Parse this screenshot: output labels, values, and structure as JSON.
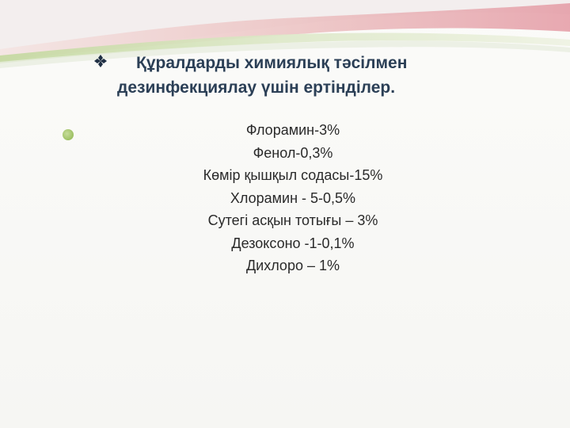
{
  "slide": {
    "title_line_1": "Құралдарды химиялық тәсілмен",
    "title_line_2": "дезинфекциялау үшін ертінділер.",
    "title_bullet_icon": "diamond-bullet-icon",
    "list_bullet_icon": "green-dot-icon",
    "items": [
      "Флорамин-3%",
      "Фенол-0,3%",
      "Көмір қышқыл содасы-15%",
      "Хлорамин - 5-0,5%",
      "Сутегі асқын тотығы – 3%",
      "Дезоксоно -1-0,1%",
      "Дихлоро – 1%"
    ]
  },
  "colors": {
    "title": "#2b3f56",
    "text": "#2a2a2a",
    "accent_green": "#9dc063",
    "accent_pink": "#e8a7b0"
  }
}
